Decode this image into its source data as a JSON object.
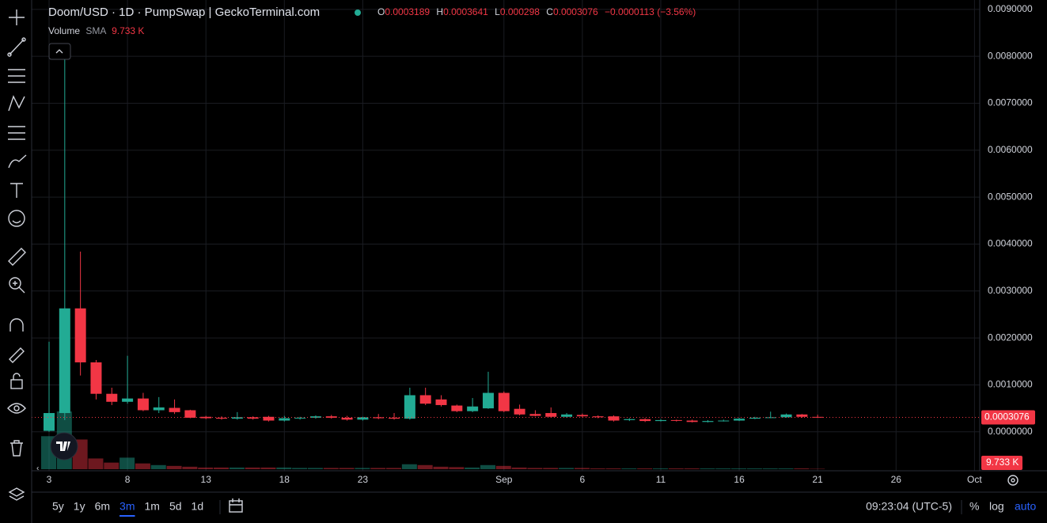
{
  "ui": {
    "title": "Doom/USD · 1D · PumpSwap | GeckoTerminal.com",
    "ohlc_labels": [
      "O",
      "H",
      "L",
      "C"
    ],
    "change": "−0.0000113 (−3.56%)",
    "timeframes": [
      "5y",
      "1y",
      "6m",
      "3m",
      "1m",
      "5d",
      "1d"
    ],
    "time": "09:23:04 (UTC-5)",
    "scale_options": [
      "%",
      "log",
      "auto"
    ]
  },
  "chart_data": {
    "type": "candlestick",
    "categories": [
      "3",
      null,
      null,
      null,
      null,
      "8",
      null,
      null,
      null,
      null,
      "13",
      null,
      null,
      null,
      null,
      "18",
      null,
      null,
      null,
      null,
      "23",
      null,
      null,
      null,
      null,
      null,
      null,
      null,
      null,
      "Sep",
      null,
      null,
      null,
      null,
      "6",
      null,
      null,
      null,
      null,
      "11",
      null,
      null,
      null,
      null,
      "16",
      null,
      null,
      null,
      null,
      "21",
      null,
      null,
      null,
      null,
      "26",
      null,
      null,
      null,
      null,
      "Oct"
    ],
    "open": [
      2e-05,
      0.0004,
      0.00263,
      0.00148,
      0.00081,
      0.00064,
      0.00071,
      0.00046,
      0.00051,
      0.00046,
      0.00032,
      0.0003,
      0.00028,
      0.00031,
      0.00032,
      0.00024,
      0.00029,
      0.0003,
      0.00033,
      0.0003,
      0.00026,
      0.00031,
      0.0003,
      0.00028,
      0.00078,
      0.00069,
      0.00056,
      0.00044,
      0.0005,
      0.00083,
      0.00049,
      0.00038,
      0.0004,
      0.00032,
      0.00036,
      0.00033,
      0.00033,
      0.00025,
      0.00027,
      0.00023,
      0.00025,
      0.00024,
      0.00021,
      0.00023,
      0.00024,
      0.00028,
      0.0003,
      0.00031,
      0.00037,
      0.0003189,
      null,
      null,
      null,
      null,
      null,
      null,
      null,
      null,
      null,
      null
    ],
    "high": [
      0.00192,
      0.0082,
      0.00384,
      0.00153,
      0.00094,
      0.00162,
      0.00083,
      0.00074,
      0.00069,
      0.00047,
      0.00034,
      0.00033,
      0.00042,
      0.00033,
      0.00034,
      0.00034,
      0.00032,
      0.00035,
      0.00036,
      0.00034,
      0.00032,
      0.00038,
      0.0004,
      0.00094,
      0.00094,
      0.00078,
      0.00058,
      0.00072,
      0.00128,
      0.00086,
      0.00058,
      0.00046,
      0.00052,
      0.0004,
      0.00039,
      0.00035,
      0.00035,
      0.00029,
      0.00029,
      0.00027,
      0.00026,
      0.00026,
      0.00025,
      0.00026,
      0.0003,
      0.00032,
      0.00043,
      0.00039,
      0.00038,
      0.0003641,
      null,
      null,
      null,
      null,
      null,
      null,
      null,
      null,
      null,
      null
    ],
    "low": [
      0,
      0.00025,
      0.0012,
      0.00069,
      0.00057,
      0.0006,
      0.00044,
      0.0004,
      0.00038,
      0.00029,
      0.00027,
      0.00026,
      0.00026,
      0.00026,
      0.00022,
      0.00022,
      0.00026,
      0.00028,
      0.00028,
      0.00024,
      0.00024,
      0.00027,
      0.00026,
      0.00026,
      0.00057,
      0.00054,
      0.00042,
      0.00042,
      0.00049,
      0.00042,
      0.00035,
      0.00033,
      0.0003,
      0.0003,
      0.00031,
      0.00029,
      0.00022,
      0.00023,
      0.00021,
      0.00022,
      0.00022,
      0.0002,
      0.0002,
      0.00022,
      0.00023,
      0.00027,
      0.00029,
      0.0003,
      0.0003,
      0.000298,
      null,
      null,
      null,
      null,
      null,
      null,
      null,
      null,
      null,
      null
    ],
    "close": [
      0.0004,
      0.00263,
      0.00148,
      0.00081,
      0.00064,
      0.00071,
      0.00046,
      0.00052,
      0.00042,
      0.0003,
      0.00029,
      0.00028,
      0.00031,
      0.00028,
      0.00024,
      0.00029,
      0.0003,
      0.00033,
      0.0003,
      0.00026,
      0.00031,
      0.00029,
      0.00028,
      0.00078,
      0.0006,
      0.00057,
      0.00044,
      0.00054,
      0.00083,
      0.00044,
      0.00037,
      0.00034,
      0.00032,
      0.00037,
      0.00033,
      0.00031,
      0.00024,
      0.00027,
      0.00023,
      0.00025,
      0.00024,
      0.00021,
      0.00023,
      0.00024,
      0.00028,
      0.0003,
      0.00031,
      0.00037,
      0.00032,
      0.0003076,
      null,
      null,
      null,
      null,
      null,
      null,
      null,
      null,
      null,
      null
    ],
    "volume": [
      800000,
      1400000,
      720000,
      260000,
      160000,
      280000,
      140000,
      100000,
      80000,
      60000,
      40000,
      40000,
      40000,
      40000,
      40000,
      40000,
      30000,
      30000,
      30000,
      30000,
      30000,
      30000,
      30000,
      120000,
      100000,
      60000,
      50000,
      40000,
      100000,
      80000,
      40000,
      30000,
      30000,
      30000,
      30000,
      20000,
      20000,
      20000,
      20000,
      20000,
      20000,
      20000,
      20000,
      20000,
      20000,
      20000,
      20000,
      20000,
      20000,
      9733,
      null,
      null,
      null,
      null,
      null,
      null,
      null,
      null,
      null,
      null
    ],
    "volume_name": "Volume",
    "volume_indicator": "SMA",
    "volume_label": "9.733 K",
    "up_color": "#22ab94",
    "down_color": "#f23645",
    "ylim": [
      -0.00083,
      0.0092
    ],
    "yticks": [
      {
        "value": 0,
        "label": "0.0000000"
      },
      {
        "value": 0.001,
        "label": "0.0010000"
      },
      {
        "value": 0.002,
        "label": "0.0020000"
      },
      {
        "value": 0.003,
        "label": "0.0030000"
      },
      {
        "value": 0.004,
        "label": "0.0040000"
      },
      {
        "value": 0.005,
        "label": "0.0050000"
      },
      {
        "value": 0.006,
        "label": "0.0060000"
      },
      {
        "value": 0.007,
        "label": "0.0070000"
      },
      {
        "value": 0.008,
        "label": "0.0080000"
      },
      {
        "value": 0.009,
        "label": "0.0090000"
      }
    ],
    "grid": true
  }
}
